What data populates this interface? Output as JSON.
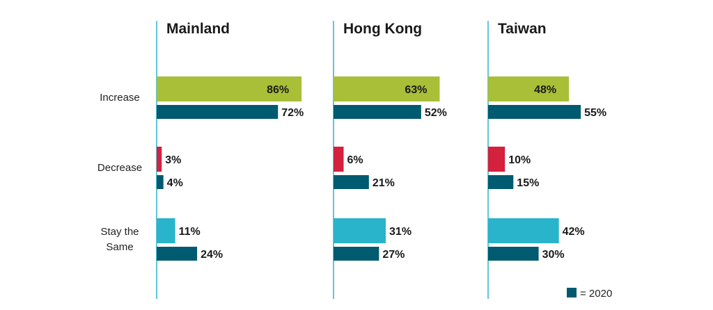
{
  "chart_data": {
    "type": "bar",
    "orientation": "horizontal",
    "categories": [
      "Increase",
      "Decrease",
      "Stay the Same"
    ],
    "panels": [
      {
        "title": "Mainland",
        "current": [
          86,
          3,
          11
        ],
        "prior_2020": [
          72,
          4,
          24
        ],
        "current_labels": [
          "86%",
          "3%",
          "11%"
        ],
        "prior_labels": [
          "72%",
          "4%",
          "24%"
        ]
      },
      {
        "title": "Hong Kong",
        "current": [
          63,
          6,
          31
        ],
        "prior_2020": [
          52,
          21,
          27
        ],
        "current_labels": [
          "63%",
          "6%",
          "31%"
        ],
        "prior_labels": [
          "52%",
          "21%",
          "27%"
        ]
      },
      {
        "title": "Taiwan",
        "current": [
          48,
          10,
          42
        ],
        "prior_2020": [
          55,
          15,
          30
        ],
        "current_labels": [
          "48%",
          "10%",
          "42%"
        ],
        "prior_labels": [
          "55%",
          "15%",
          "30%"
        ]
      }
    ],
    "category_colors": [
      "#a9bf38",
      "#d4213d",
      "#2ab4cb"
    ],
    "prior_color": "#005a70",
    "axis_color": "#2ab4cb",
    "legend": {
      "label": "= 2020",
      "placement": "bottom-right"
    },
    "xlim": [
      0,
      100
    ],
    "grid": false
  }
}
